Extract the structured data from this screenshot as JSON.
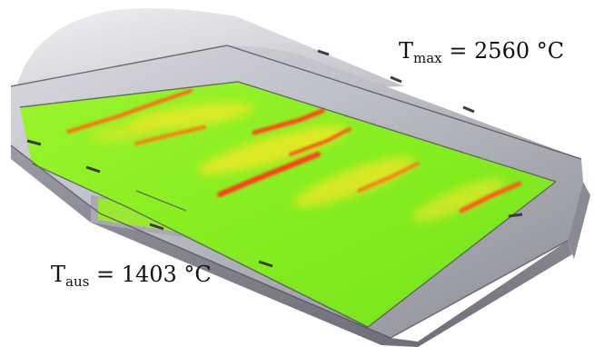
{
  "annotations": {
    "tmax": {
      "symbol": "T",
      "subscript": "max",
      "value": "= 2560 °C"
    },
    "taus": {
      "symbol": "T",
      "subscript": "aus",
      "value": "= 1403 °C"
    }
  },
  "colors": {
    "housing_gray": "#b9b9c0",
    "housing_dark": "#7f7f8a",
    "melt_green": "#86ef1f",
    "melt_yellow": "#e7ea24",
    "hot_orange": "#ff7a18",
    "hot_red": "#ff3f1a"
  }
}
